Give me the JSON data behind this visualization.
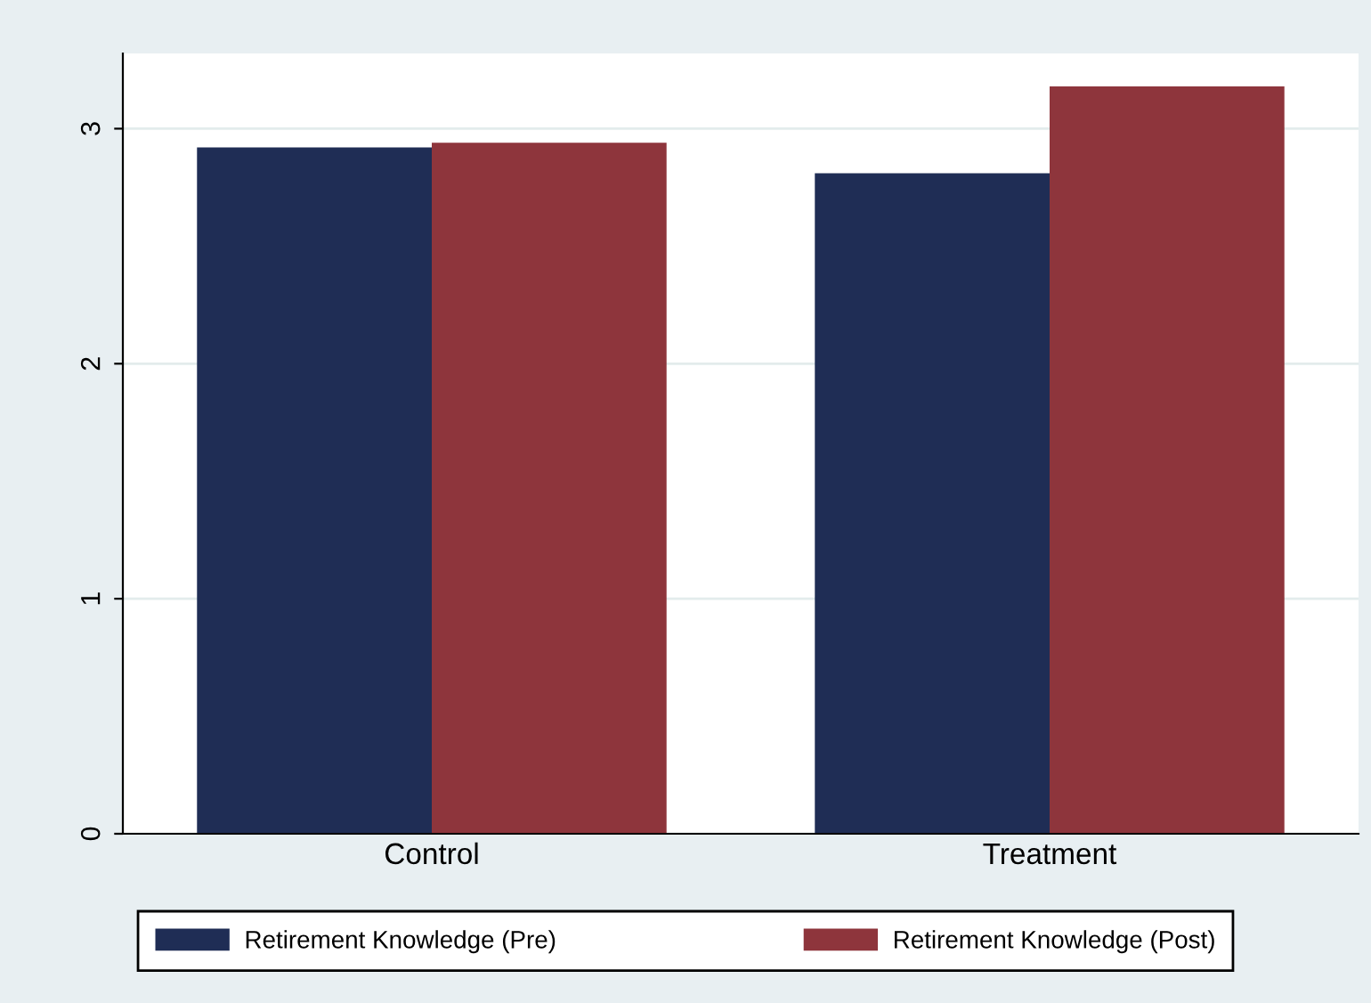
{
  "chart_data": {
    "type": "bar",
    "categories": [
      "Control",
      "Treatment"
    ],
    "series": [
      {
        "name": "Retirement Knowledge (Pre)",
        "color": "#1f2d55",
        "values": [
          2.92,
          2.81
        ]
      },
      {
        "name": "Retirement Knowledge (Post)",
        "color": "#8e353c",
        "values": [
          2.94,
          3.18
        ]
      }
    ],
    "ylim": [
      0,
      3.32
    ],
    "yticks": [
      0,
      1,
      2,
      3
    ],
    "grid": "y",
    "legend": "bottom"
  }
}
